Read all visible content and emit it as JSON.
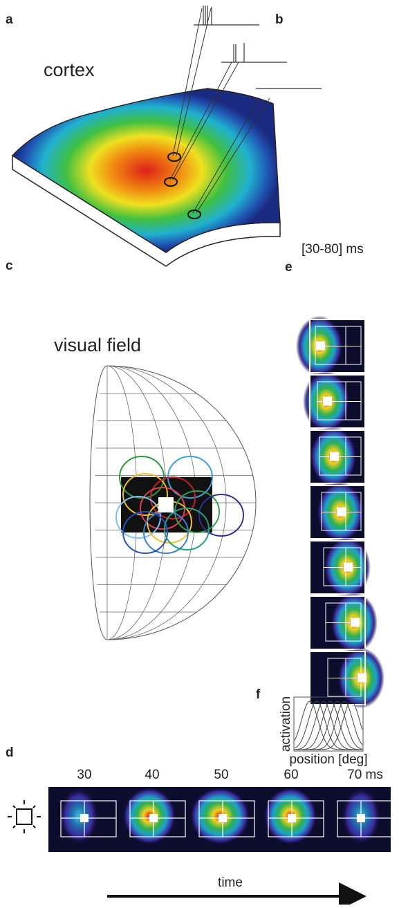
{
  "panel_labels": [
    "a",
    "b",
    "c",
    "d",
    "e",
    "f"
  ],
  "cortex_label": "cortex",
  "visual_field_label": "visual field",
  "e_time_window": "[30-80] ms",
  "f_axes": {
    "y_label": "activation",
    "x_label": "position [deg]"
  },
  "d_times": [
    "30",
    "40",
    "50",
    "60",
    "70 ms"
  ],
  "d_time_axis_label": "time"
}
